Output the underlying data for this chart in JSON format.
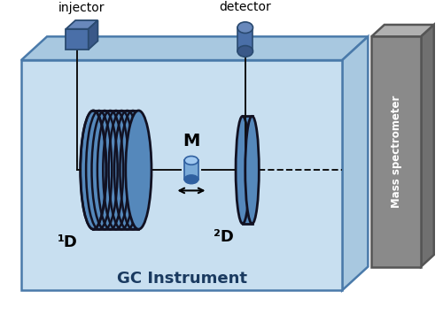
{
  "fig_width": 5.0,
  "fig_height": 3.55,
  "dpi": 100,
  "box_light_blue": "#c8dff0",
  "box_edge_color": "#4a7aaa",
  "box_side_blue": "#a8c8e0",
  "ms_gray_front": "#8a8a8a",
  "ms_gray_top": "#b0b0b0",
  "ms_gray_right": "#707070",
  "coil_dark": "#111122",
  "coil_blue": "#5588bb",
  "modulator_blue": "#7aaad8",
  "injector_blue": "#4a6fa8",
  "line_color": "#111111",
  "title_text": "GC Instrument",
  "ms_text": "Mass spectrometer",
  "injector_text": "injector",
  "detector_text": "detector",
  "label_1D": "¹D",
  "label_2D": "²D",
  "label_M": "M"
}
